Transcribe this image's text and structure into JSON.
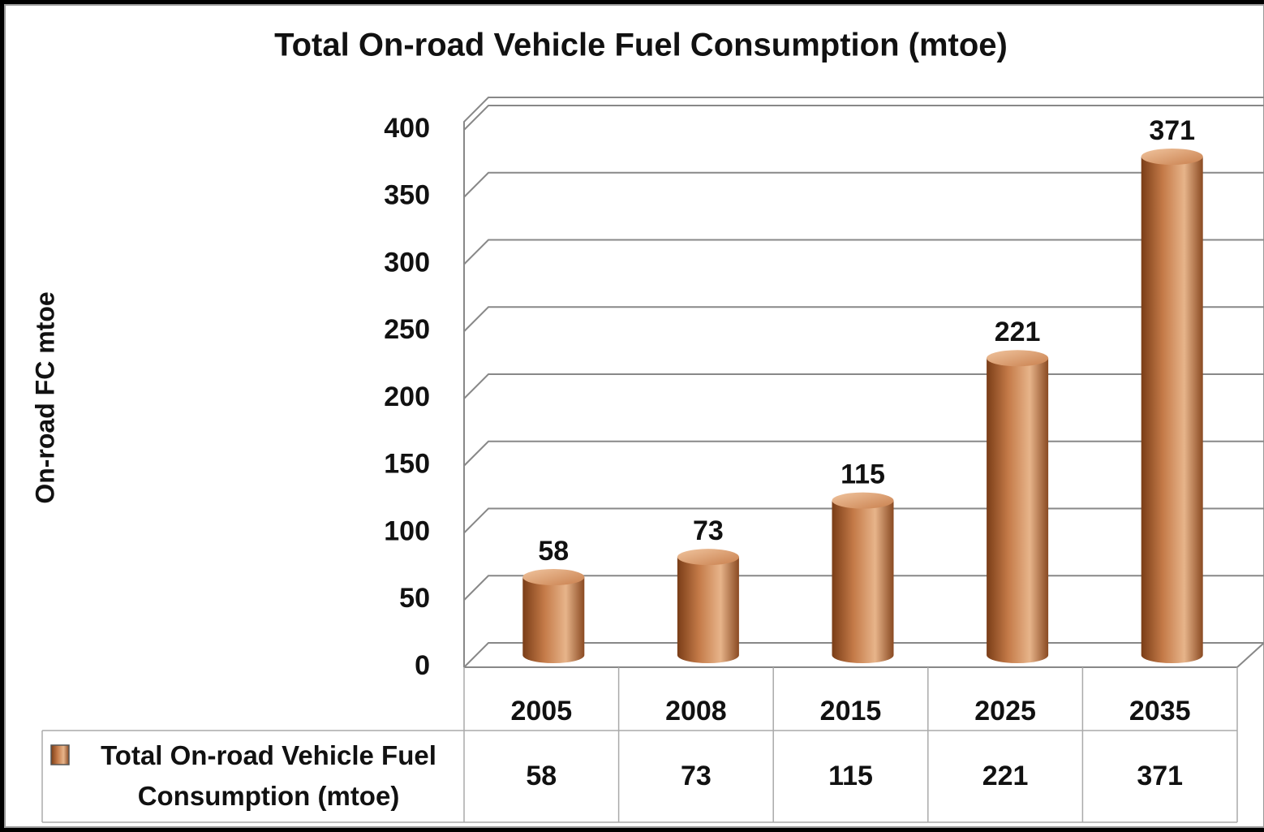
{
  "chart_data": {
    "type": "bar3d",
    "title": "Total On-road Vehicle Fuel Consumption (mtoe)",
    "y_label": "On-road FC mtoe",
    "categories": [
      "2005",
      "2008",
      "2015",
      "2025",
      "2035"
    ],
    "series": [
      {
        "name": "Total On-road Vehicle Fuel Consumption (mtoe)",
        "color": "#c8804f",
        "values": [
          58,
          73,
          115,
          221,
          371
        ]
      }
    ],
    "ylim": [
      0,
      400
    ],
    "yticks": [
      0,
      50,
      100,
      150,
      200,
      250,
      300,
      350,
      400
    ],
    "grid": true,
    "data_table": true
  }
}
